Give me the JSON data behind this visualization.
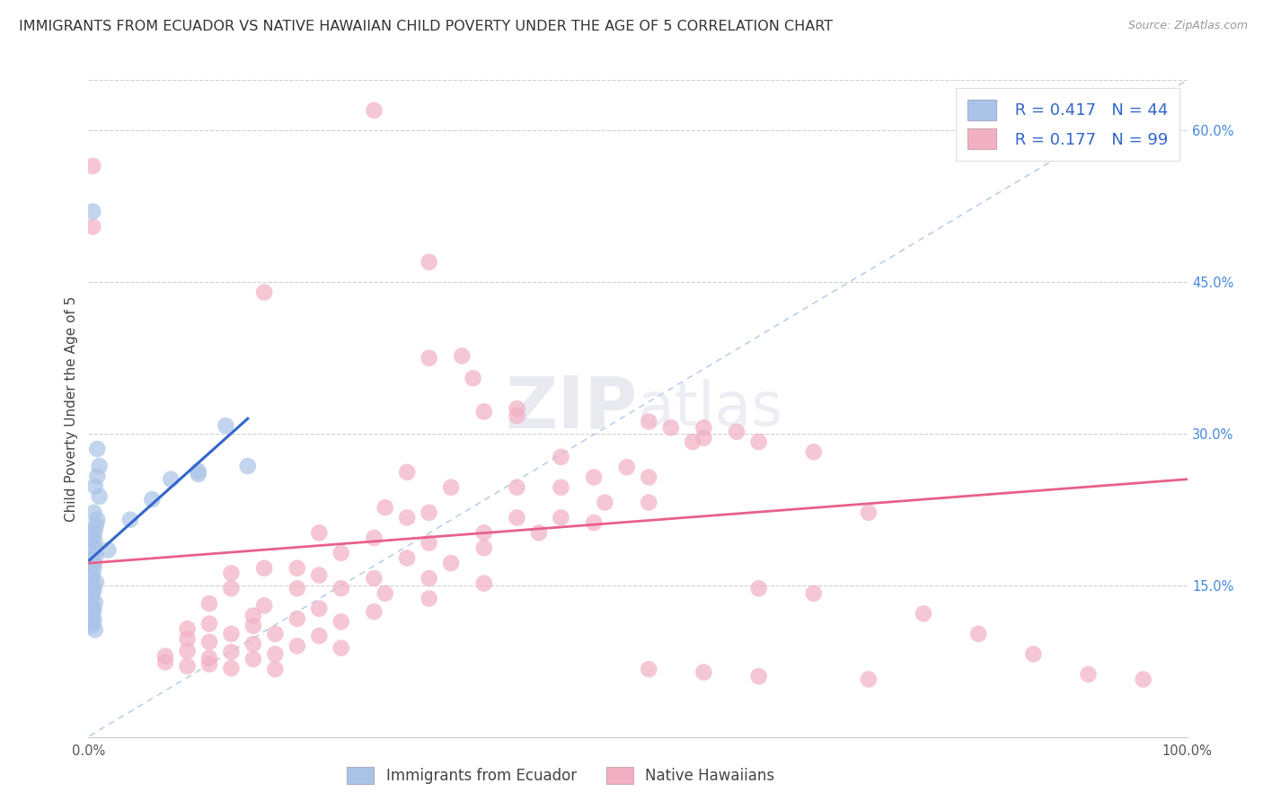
{
  "title": "IMMIGRANTS FROM ECUADOR VS NATIVE HAWAIIAN CHILD POVERTY UNDER THE AGE OF 5 CORRELATION CHART",
  "source": "Source: ZipAtlas.com",
  "ylabel": "Child Poverty Under the Age of 5",
  "xlim": [
    0,
    1.0
  ],
  "ylim": [
    0,
    0.65
  ],
  "xticklabels_pos": [
    0.0,
    1.0
  ],
  "xticklabels": [
    "0.0%",
    "100.0%"
  ],
  "yticks_right": [
    0.15,
    0.3,
    0.45,
    0.6
  ],
  "ytick_right_labels": [
    "15.0%",
    "30.0%",
    "45.0%",
    "60.0%"
  ],
  "r1": 0.417,
  "n1": 44,
  "r2": 0.177,
  "n2": 99,
  "color1": "#aac4e8",
  "color2": "#f2b0c4",
  "line1_color": "#3366cc",
  "line2_color": "#e8608a",
  "legend_label1": "Immigrants from Ecuador",
  "legend_label2": "Native Hawaiians",
  "scatter1": [
    [
      0.004,
      0.52
    ],
    [
      0.018,
      0.185
    ],
    [
      0.008,
      0.285
    ],
    [
      0.01,
      0.268
    ],
    [
      0.008,
      0.258
    ],
    [
      0.006,
      0.248
    ],
    [
      0.01,
      0.238
    ],
    [
      0.005,
      0.222
    ],
    [
      0.008,
      0.215
    ],
    [
      0.007,
      0.21
    ],
    [
      0.006,
      0.205
    ],
    [
      0.005,
      0.2
    ],
    [
      0.003,
      0.197
    ],
    [
      0.006,
      0.193
    ],
    [
      0.005,
      0.188
    ],
    [
      0.006,
      0.185
    ],
    [
      0.007,
      0.18
    ],
    [
      0.004,
      0.175
    ],
    [
      0.003,
      0.17
    ],
    [
      0.005,
      0.168
    ],
    [
      0.004,
      0.162
    ],
    [
      0.003,
      0.158
    ],
    [
      0.007,
      0.153
    ],
    [
      0.004,
      0.152
    ],
    [
      0.003,
      0.148
    ],
    [
      0.005,
      0.146
    ],
    [
      0.004,
      0.143
    ],
    [
      0.003,
      0.138
    ],
    [
      0.006,
      0.133
    ],
    [
      0.004,
      0.128
    ],
    [
      0.005,
      0.126
    ],
    [
      0.004,
      0.123
    ],
    [
      0.003,
      0.118
    ],
    [
      0.005,
      0.116
    ],
    [
      0.004,
      0.113
    ],
    [
      0.003,
      0.11
    ],
    [
      0.006,
      0.106
    ],
    [
      0.125,
      0.308
    ],
    [
      0.1,
      0.263
    ],
    [
      0.1,
      0.26
    ],
    [
      0.075,
      0.255
    ],
    [
      0.058,
      0.235
    ],
    [
      0.038,
      0.215
    ],
    [
      0.145,
      0.268
    ]
  ],
  "scatter2": [
    [
      0.004,
      0.565
    ],
    [
      0.004,
      0.505
    ],
    [
      0.26,
      0.62
    ],
    [
      0.31,
      0.47
    ],
    [
      0.16,
      0.44
    ],
    [
      0.31,
      0.375
    ],
    [
      0.34,
      0.377
    ],
    [
      0.35,
      0.355
    ],
    [
      0.36,
      0.322
    ],
    [
      0.39,
      0.325
    ],
    [
      0.39,
      0.318
    ],
    [
      0.51,
      0.312
    ],
    [
      0.53,
      0.306
    ],
    [
      0.56,
      0.306
    ],
    [
      0.59,
      0.302
    ],
    [
      0.55,
      0.292
    ],
    [
      0.56,
      0.296
    ],
    [
      0.61,
      0.292
    ],
    [
      0.43,
      0.277
    ],
    [
      0.49,
      0.267
    ],
    [
      0.29,
      0.262
    ],
    [
      0.46,
      0.257
    ],
    [
      0.51,
      0.257
    ],
    [
      0.33,
      0.247
    ],
    [
      0.39,
      0.247
    ],
    [
      0.43,
      0.247
    ],
    [
      0.47,
      0.232
    ],
    [
      0.51,
      0.232
    ],
    [
      0.27,
      0.227
    ],
    [
      0.31,
      0.222
    ],
    [
      0.39,
      0.217
    ],
    [
      0.43,
      0.217
    ],
    [
      0.29,
      0.217
    ],
    [
      0.46,
      0.212
    ],
    [
      0.21,
      0.202
    ],
    [
      0.36,
      0.202
    ],
    [
      0.41,
      0.202
    ],
    [
      0.26,
      0.197
    ],
    [
      0.31,
      0.192
    ],
    [
      0.36,
      0.187
    ],
    [
      0.23,
      0.182
    ],
    [
      0.29,
      0.177
    ],
    [
      0.33,
      0.172
    ],
    [
      0.16,
      0.167
    ],
    [
      0.19,
      0.167
    ],
    [
      0.13,
      0.162
    ],
    [
      0.21,
      0.16
    ],
    [
      0.26,
      0.157
    ],
    [
      0.31,
      0.157
    ],
    [
      0.36,
      0.152
    ],
    [
      0.13,
      0.147
    ],
    [
      0.19,
      0.147
    ],
    [
      0.23,
      0.147
    ],
    [
      0.27,
      0.142
    ],
    [
      0.31,
      0.137
    ],
    [
      0.11,
      0.132
    ],
    [
      0.16,
      0.13
    ],
    [
      0.21,
      0.127
    ],
    [
      0.26,
      0.124
    ],
    [
      0.15,
      0.12
    ],
    [
      0.19,
      0.117
    ],
    [
      0.23,
      0.114
    ],
    [
      0.11,
      0.112
    ],
    [
      0.15,
      0.11
    ],
    [
      0.09,
      0.107
    ],
    [
      0.13,
      0.102
    ],
    [
      0.17,
      0.102
    ],
    [
      0.21,
      0.1
    ],
    [
      0.09,
      0.097
    ],
    [
      0.11,
      0.094
    ],
    [
      0.15,
      0.092
    ],
    [
      0.19,
      0.09
    ],
    [
      0.23,
      0.088
    ],
    [
      0.09,
      0.085
    ],
    [
      0.13,
      0.084
    ],
    [
      0.17,
      0.082
    ],
    [
      0.07,
      0.08
    ],
    [
      0.11,
      0.078
    ],
    [
      0.15,
      0.077
    ],
    [
      0.07,
      0.074
    ],
    [
      0.11,
      0.072
    ],
    [
      0.09,
      0.07
    ],
    [
      0.13,
      0.068
    ],
    [
      0.17,
      0.067
    ],
    [
      0.51,
      0.067
    ],
    [
      0.56,
      0.064
    ],
    [
      0.61,
      0.06
    ],
    [
      0.71,
      0.057
    ],
    [
      0.76,
      0.122
    ],
    [
      0.81,
      0.102
    ],
    [
      0.86,
      0.082
    ],
    [
      0.91,
      0.062
    ],
    [
      0.96,
      0.057
    ],
    [
      0.66,
      0.142
    ],
    [
      0.71,
      0.222
    ],
    [
      0.61,
      0.147
    ],
    [
      0.66,
      0.282
    ],
    [
      0.005,
      0.172
    ]
  ],
  "line1_x": [
    0.001,
    0.145
  ],
  "line1_y": [
    0.175,
    0.315
  ],
  "line2_x": [
    0.001,
    1.0
  ],
  "line2_y": [
    0.172,
    0.255
  ],
  "dashed_line_x": [
    0.001,
    1.0
  ],
  "dashed_line_y": [
    0.001,
    0.65
  ],
  "background_color": "#ffffff",
  "grid_color": "#d0d0d0",
  "title_fontsize": 11.5,
  "axis_label_fontsize": 11,
  "tick_fontsize": 10.5
}
